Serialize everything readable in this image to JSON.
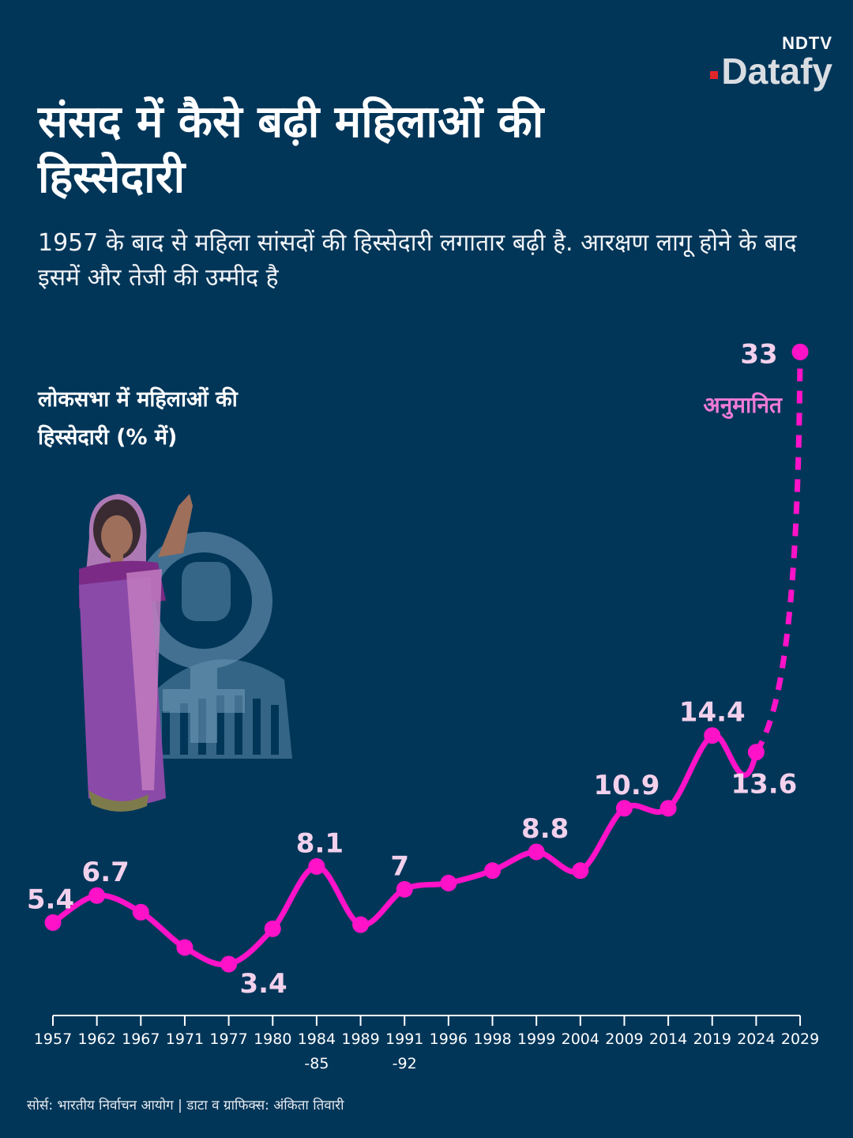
{
  "logo": {
    "top": "NDTV",
    "main": "Datafy"
  },
  "title": "संसद में कैसे बढ़ी महिलाओं की हिस्सेदारी",
  "subtitle": "1957 के बाद से महिला सांसदों की हिस्सेदारी लगातार बढ़ी है. आरक्षण लागू होने के बाद इसमें और तेजी की उम्मीद है",
  "source": "सोर्स: भारतीय निर्वाचन आयोग | डाटा व ग्राफिक्स: अंकिता तिवारी",
  "illustration": {
    "icon": "woman-in-saree-with-female-symbol-and-parliament-icon"
  },
  "colors": {
    "background": "#013659",
    "line": "#ff12c8",
    "label": "#f3d1ec",
    "annotation": "#f07ad8"
  },
  "chart_data": {
    "type": "line",
    "title": "",
    "ylabel": "लोकसभा में महिलाओं की हिस्सेदारी (% में)",
    "xlabel": "",
    "categories": [
      "1957",
      "1962",
      "1967",
      "1971",
      "1977",
      "1980",
      "1984-85",
      "1989",
      "1991-92",
      "1996",
      "1998",
      "1999",
      "2004",
      "2009",
      "2014",
      "2019",
      "2024",
      "2029"
    ],
    "tick_lines": [
      [
        "1957"
      ],
      [
        "1962"
      ],
      [
        "1967"
      ],
      [
        "1971"
      ],
      [
        "1977"
      ],
      [
        "1980"
      ],
      [
        "1984",
        "-85"
      ],
      [
        "1989"
      ],
      [
        "1991",
        "-92"
      ],
      [
        "1996"
      ],
      [
        "1998"
      ],
      [
        "1999"
      ],
      [
        "2004"
      ],
      [
        "2009"
      ],
      [
        "2014"
      ],
      [
        "2019"
      ],
      [
        "2024"
      ],
      [
        "2029"
      ]
    ],
    "values": [
      5.4,
      6.7,
      5.9,
      4.2,
      3.4,
      5.1,
      8.1,
      5.3,
      7,
      7.3,
      7.9,
      8.8,
      7.9,
      10.9,
      10.9,
      14.4,
      13.6,
      33
    ],
    "data_labels": [
      {
        "category": "1957",
        "text": "5.4"
      },
      {
        "category": "1962",
        "text": "6.7"
      },
      {
        "category": "1977",
        "text": "3.4"
      },
      {
        "category": "1984-85",
        "text": "8.1"
      },
      {
        "category": "1991-92",
        "text": "7"
      },
      {
        "category": "1999",
        "text": "8.8"
      },
      {
        "category": "2009",
        "text": "10.9"
      },
      {
        "category": "2019",
        "text": "14.4"
      },
      {
        "category": "2024",
        "text": "13.6"
      },
      {
        "category": "2029",
        "text": "33"
      }
    ],
    "projected": {
      "from": "2024",
      "to": "2029",
      "style": "dashed",
      "label": "अनुमानित"
    },
    "grid": false,
    "legend": "none"
  }
}
